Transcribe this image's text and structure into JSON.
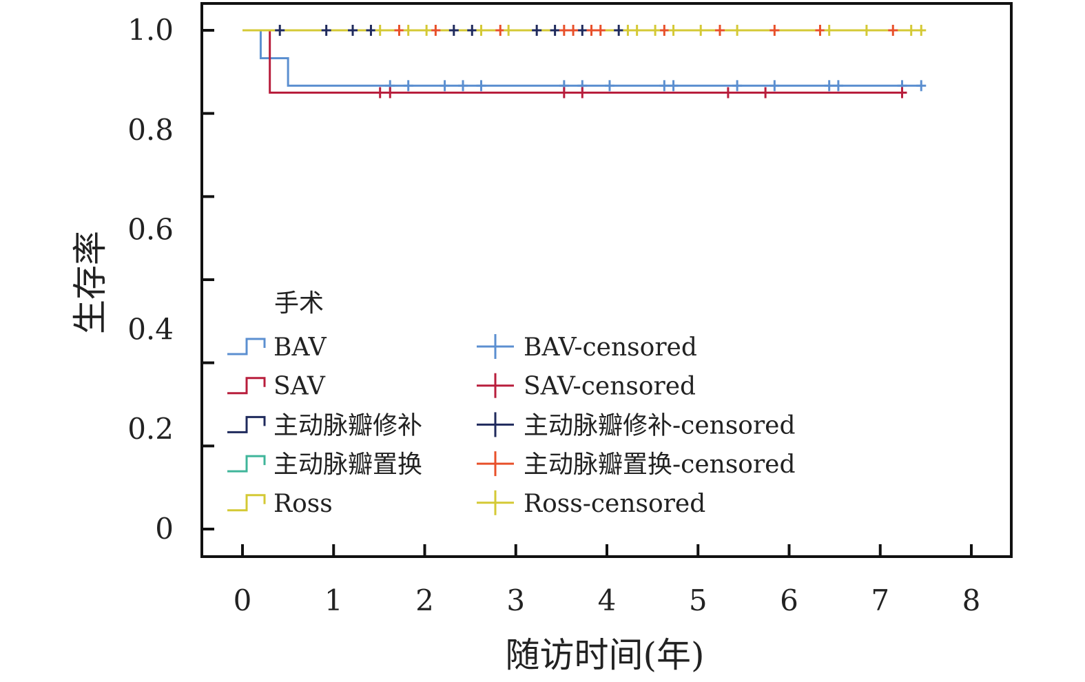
{
  "chart_data": {
    "type": "line",
    "subtype": "kaplan-meier",
    "xlabel": "随访时间(年)",
    "ylabel": "生存率",
    "xlim": [
      0,
      8
    ],
    "ylim": [
      0,
      1
    ],
    "x_ticks": [
      "0",
      "1",
      "2",
      "3",
      "4",
      "5",
      "6",
      "7",
      "8"
    ],
    "y_ticks": [
      "0",
      "0.2",
      "0.4",
      "0.6",
      "0.8",
      "1.0"
    ],
    "y_tick_mark_count": 7,
    "legend_title": "手术",
    "legend_placement": "bottom-left",
    "series": [
      {
        "name": "BAV",
        "censored_label": "BAV-censored",
        "color": "#5b8fd0",
        "steps": [
          [
            0,
            1.0
          ],
          [
            0.2,
            0.944
          ],
          [
            0.5,
            0.889
          ]
        ],
        "end": 7.45,
        "censored": [
          1.62,
          1.82,
          2.22,
          2.42,
          2.62,
          3.53,
          3.73,
          4.03,
          4.63,
          4.73,
          5.43,
          5.84,
          6.44,
          6.54,
          7.24,
          7.45
        ]
      },
      {
        "name": "SAV",
        "censored_label": "SAV-censored",
        "color": "#b81e3c",
        "steps": [
          [
            0,
            1.0
          ],
          [
            0.3,
            0.875
          ]
        ],
        "end": 7.25,
        "censored": [
          1.51,
          1.62,
          3.53,
          3.73,
          5.33,
          5.74,
          7.24
        ]
      },
      {
        "name": "主动脉瓣修补",
        "censored_label": "主动脉瓣修补-censored",
        "color": "#1f2a5c",
        "steps": [
          [
            0,
            1.0
          ]
        ],
        "end": 4.13,
        "censored": [
          0.41,
          0.92,
          1.21,
          1.41,
          2.32,
          2.52,
          3.23,
          3.43,
          3.73,
          4.13
        ]
      },
      {
        "name": "主动脉瓣置换",
        "censored_label": "主动脉瓣置换-censored",
        "color": "#3fb59a",
        "censor_color": "#e8502a",
        "steps": [
          [
            0,
            1.0
          ]
        ],
        "end": 7.14,
        "censored": [
          1.72,
          2.12,
          2.83,
          3.53,
          3.63,
          3.83,
          3.93,
          4.63,
          5.24,
          5.84,
          6.34,
          7.14
        ]
      },
      {
        "name": "Ross",
        "censored_label": "Ross-censored",
        "color": "#d4c935",
        "steps": [
          [
            0,
            1.0
          ]
        ],
        "end": 7.45,
        "censored": [
          1.51,
          1.82,
          2.02,
          2.62,
          2.92,
          4.23,
          4.33,
          4.53,
          4.73,
          5.03,
          5.43,
          6.44,
          6.85,
          7.34,
          7.45
        ]
      }
    ]
  }
}
